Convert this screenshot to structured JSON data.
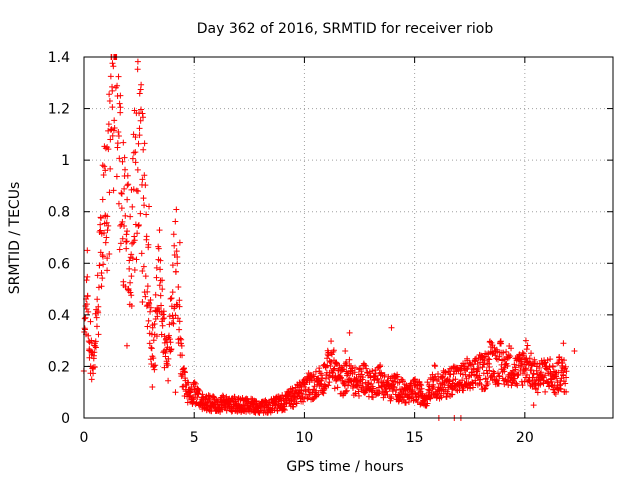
{
  "chart_data": {
    "type": "scatter",
    "title": "Day 362 of 2016, SRMTID for receiver riob",
    "xlabel": "GPS time / hours",
    "ylabel": "SRMTID / TECUs",
    "xlim": [
      0,
      24
    ],
    "ylim": [
      0,
      1.4
    ],
    "xticks": [
      0,
      5,
      10,
      15,
      20
    ],
    "yticks": [
      0,
      0.2,
      0.4,
      0.6,
      0.8,
      1,
      1.2,
      1.4
    ],
    "ytick_labels": [
      "0",
      "0.2",
      "0.4",
      "0.6",
      "0.8",
      "1",
      "1.2",
      "1.4"
    ],
    "grid": true,
    "marker": "+",
    "color": "#ff0000",
    "series": [
      {
        "name": "riob",
        "sample_step_hours": 0.1,
        "x_start": 0,
        "y": [
          0.28,
          0.38,
          0.45,
          0.25,
          0.18,
          0.3,
          0.42,
          0.52,
          0.62,
          0.75,
          0.85,
          0.95,
          1.05,
          1.22,
          1.38,
          1.3,
          0.95,
          0.85,
          0.78,
          0.72,
          0.68,
          0.62,
          0.7,
          0.9,
          1.0,
          1.05,
          0.95,
          0.85,
          0.72,
          0.55,
          0.35,
          0.3,
          0.28,
          0.45,
          0.55,
          0.48,
          0.32,
          0.25,
          0.22,
          0.3,
          0.42,
          0.55,
          0.62,
          0.4,
          0.25,
          0.15,
          0.12,
          0.1,
          0.09,
          0.08,
          0.1,
          0.09,
          0.08,
          0.07,
          0.06,
          0.06,
          0.06,
          0.06,
          0.05,
          0.06,
          0.05,
          0.05,
          0.05,
          0.06,
          0.06,
          0.05,
          0.05,
          0.05,
          0.06,
          0.05,
          0.05,
          0.05,
          0.05,
          0.05,
          0.05,
          0.04,
          0.05,
          0.05,
          0.04,
          0.04,
          0.04,
          0.04,
          0.05,
          0.04,
          0.04,
          0.05,
          0.05,
          0.05,
          0.06,
          0.06,
          0.06,
          0.06,
          0.07,
          0.07,
          0.08,
          0.08,
          0.09,
          0.09,
          0.1,
          0.1,
          0.11,
          0.12,
          0.13,
          0.12,
          0.12,
          0.13,
          0.14,
          0.15,
          0.15,
          0.16,
          0.18,
          0.2,
          0.22,
          0.2,
          0.18,
          0.16,
          0.15,
          0.14,
          0.15,
          0.16,
          0.17,
          0.16,
          0.15,
          0.14,
          0.13,
          0.14,
          0.15,
          0.16,
          0.15,
          0.14,
          0.13,
          0.13,
          0.14,
          0.15,
          0.16,
          0.14,
          0.13,
          0.12,
          0.12,
          0.11,
          0.12,
          0.13,
          0.12,
          0.11,
          0.11,
          0.1,
          0.1,
          0.09,
          0.09,
          0.1,
          0.11,
          0.1,
          0.1,
          0.09,
          0.08,
          0.08,
          0.1,
          0.12,
          0.14,
          0.15,
          0.13,
          0.12,
          0.12,
          0.13,
          0.13,
          0.14,
          0.14,
          0.15,
          0.16,
          0.15,
          0.14,
          0.15,
          0.16,
          0.16,
          0.17,
          0.16,
          0.15,
          0.16,
          0.18,
          0.19,
          0.18,
          0.17,
          0.18,
          0.2,
          0.22,
          0.24,
          0.22,
          0.2,
          0.21,
          0.22,
          0.2,
          0.19,
          0.2,
          0.21,
          0.2,
          0.19,
          0.18,
          0.18,
          0.19,
          0.2,
          0.21,
          0.22,
          0.2,
          0.18,
          0.17,
          0.16,
          0.16,
          0.17,
          0.17,
          0.16,
          0.17,
          0.18,
          0.16,
          0.15,
          0.14,
          0.16,
          0.18,
          0.17,
          0.16,
          0.15
        ],
        "isolated_points": [
          [
            12.05,
            0.33
          ],
          [
            13.95,
            0.35
          ],
          [
            16.1,
            0.0
          ],
          [
            16.8,
            0.0
          ],
          [
            17.1,
            0.0
          ],
          [
            0.15,
            0.65
          ],
          [
            0.35,
            0.15
          ],
          [
            0.85,
            0.98
          ],
          [
            1.05,
            0.62
          ],
          [
            1.25,
            1.12
          ],
          [
            1.65,
            1.25
          ],
          [
            1.95,
            0.28
          ],
          [
            2.15,
            0.55
          ],
          [
            2.25,
            1.1
          ],
          [
            2.45,
            0.88
          ],
          [
            2.65,
            0.45
          ],
          [
            2.95,
            0.82
          ],
          [
            3.1,
            0.12
          ],
          [
            3.55,
            0.5
          ],
          [
            3.75,
            0.22
          ],
          [
            4.15,
            0.1
          ],
          [
            4.35,
            0.68
          ],
          [
            11.85,
            0.26
          ],
          [
            18.2,
            0.25
          ],
          [
            20.05,
            0.3
          ],
          [
            20.4,
            0.05
          ],
          [
            21.75,
            0.29
          ],
          [
            22.25,
            0.26
          ]
        ]
      }
    ]
  }
}
